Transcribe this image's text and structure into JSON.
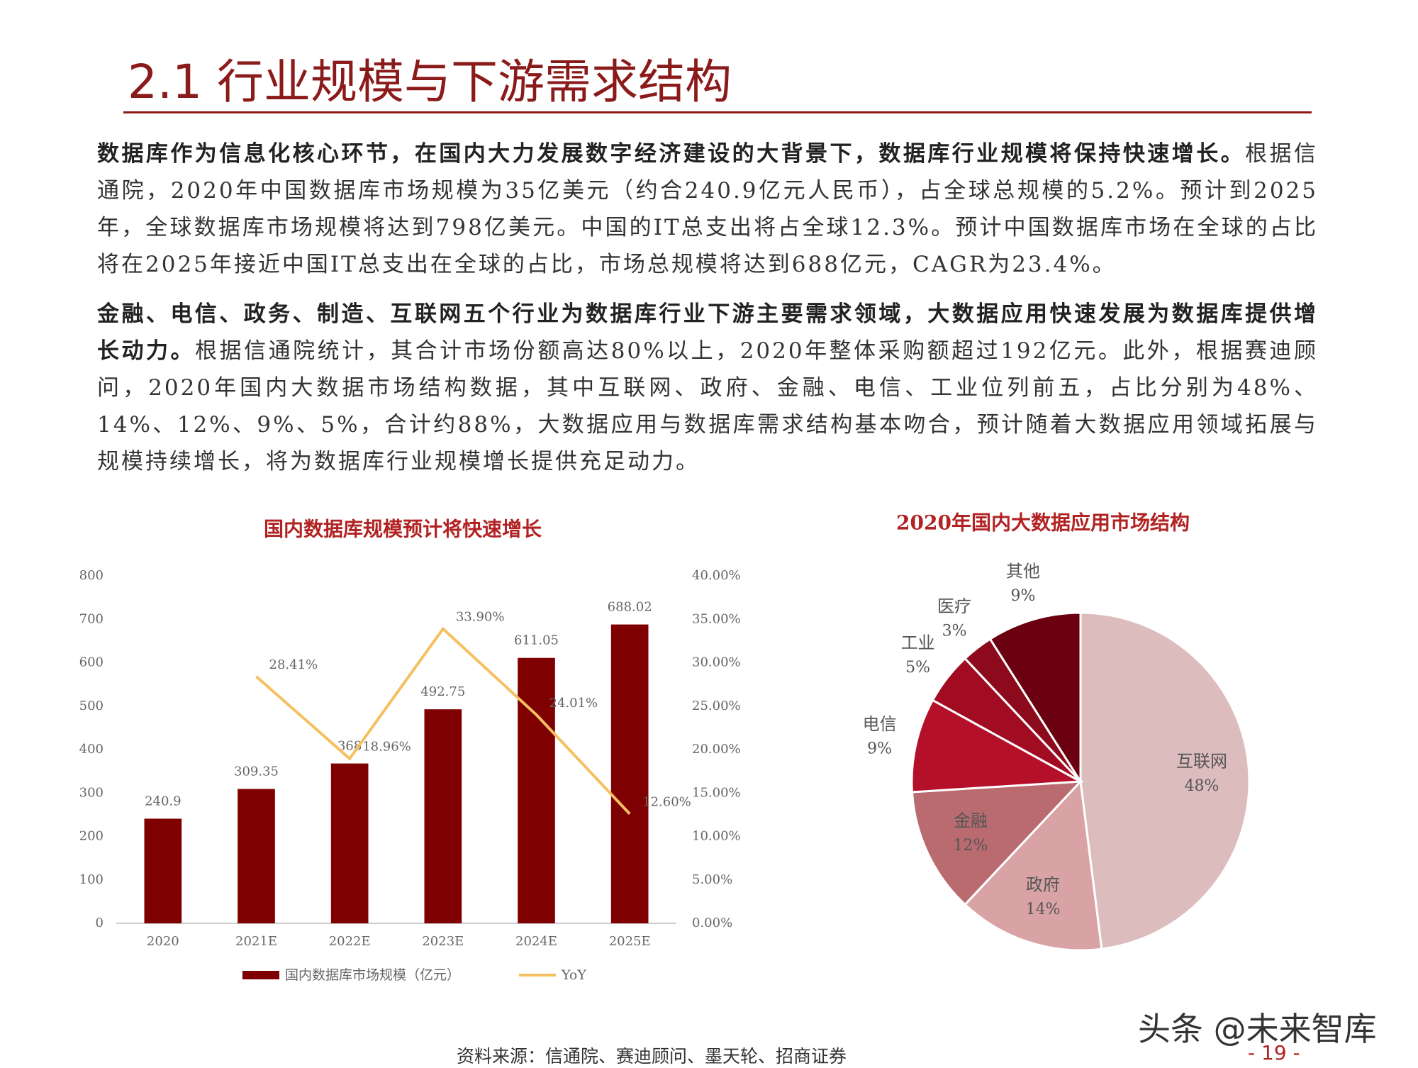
{
  "header": {
    "title": "2.1 行业规模与下游需求结构"
  },
  "paragraphs": [
    {
      "bold": "数据库作为信息化核心环节，在国内大力发展数字经济建设的大背景下，数据库行业规模将保持快速增长。",
      "text": "根据信通院，2020年中国数据库市场规模为35亿美元（约合240.9亿元人民币），占全球总规模的5.2%。预计到2025年，全球数据库市场规模将达到798亿美元。中国的IT总支出将占全球12.3%。预计中国数据库市场在全球的占比将在2025年接近中国IT总支出在全球的占比，市场总规模将达到688亿元，CAGR为23.4%。"
    },
    {
      "bold": "金融、电信、政务、制造、互联网五个行业为数据库行业下游主要需求领域，大数据应用快速发展为数据库提供增长动力。",
      "text": "根据信通院统计，其合计市场份额高达80%以上，2020年整体采购额超过192亿元。此外，根据赛迪顾问，2020年国内大数据市场结构数据，其中互联网、政府、金融、电信、工业位列前五，占比分别为48%、14%、12%、9%、5%，合计约88%，大数据应用与数据库需求结构基本吻合，预计随着大数据应用领域拓展与规模持续增长，将为数据库行业规模增长提供充足动力。"
    }
  ],
  "chart_data": [
    {
      "type": "bar_line",
      "title": "国内数据库规模预计将快速增长",
      "categories": [
        "2020",
        "2021E",
        "2022E",
        "2023E",
        "2024E",
        "2025E"
      ],
      "series": [
        {
          "name": "国内数据库市场规模（亿元）",
          "color": "#7f0000",
          "values": [
            240.9,
            309.35,
            368,
            492.75,
            611.05,
            688.02
          ]
        },
        {
          "name": "YoY",
          "color": "#f5c060",
          "axis": "y2",
          "values": [
            null,
            28.41,
            18.96,
            33.9,
            24.01,
            12.6
          ],
          "value_labels": [
            null,
            "28.41%",
            "18.96%",
            "33.90%",
            "24.01%",
            "12.60%"
          ]
        }
      ],
      "ylim": [
        0,
        800
      ],
      "yticks": [
        0,
        100,
        200,
        300,
        400,
        500,
        600,
        700,
        800
      ],
      "y2lim": [
        0,
        40
      ],
      "y2ticks": [
        {
          "value": 0,
          "label": "0.00%"
        },
        {
          "value": 5,
          "label": "5.00%"
        },
        {
          "value": 10,
          "label": "10.00%"
        },
        {
          "value": 15,
          "label": "15.00%"
        },
        {
          "value": 20,
          "label": "20.00%"
        },
        {
          "value": 25,
          "label": "25.00%"
        },
        {
          "value": 30,
          "label": "30.00%"
        },
        {
          "value": 35,
          "label": "35.00%"
        },
        {
          "value": 40,
          "label": "40.00%"
        }
      ],
      "grid": false,
      "legend": "bottom"
    },
    {
      "type": "pie",
      "title": "2020年国内大数据应用市场结构",
      "categories": [
        "互联网",
        "政府",
        "金融",
        "电信",
        "工业",
        "医疗",
        "其他"
      ],
      "values": [
        48,
        14,
        12,
        9,
        5,
        3,
        9
      ],
      "value_labels": [
        "48%",
        "14%",
        "12%",
        "9%",
        "5%",
        "3%",
        "9%"
      ],
      "colors": [
        "#dcbcbd",
        "#d9a3a6",
        "#b96b70",
        "#b5102a",
        "#a20c22",
        "#8c0a1c",
        "#6b0010"
      ]
    }
  ],
  "source": "资料来源：信通院、赛迪顾问、墨天轮、招商证券",
  "page_number": "- 19 -",
  "watermark": "头条 @未来智库"
}
